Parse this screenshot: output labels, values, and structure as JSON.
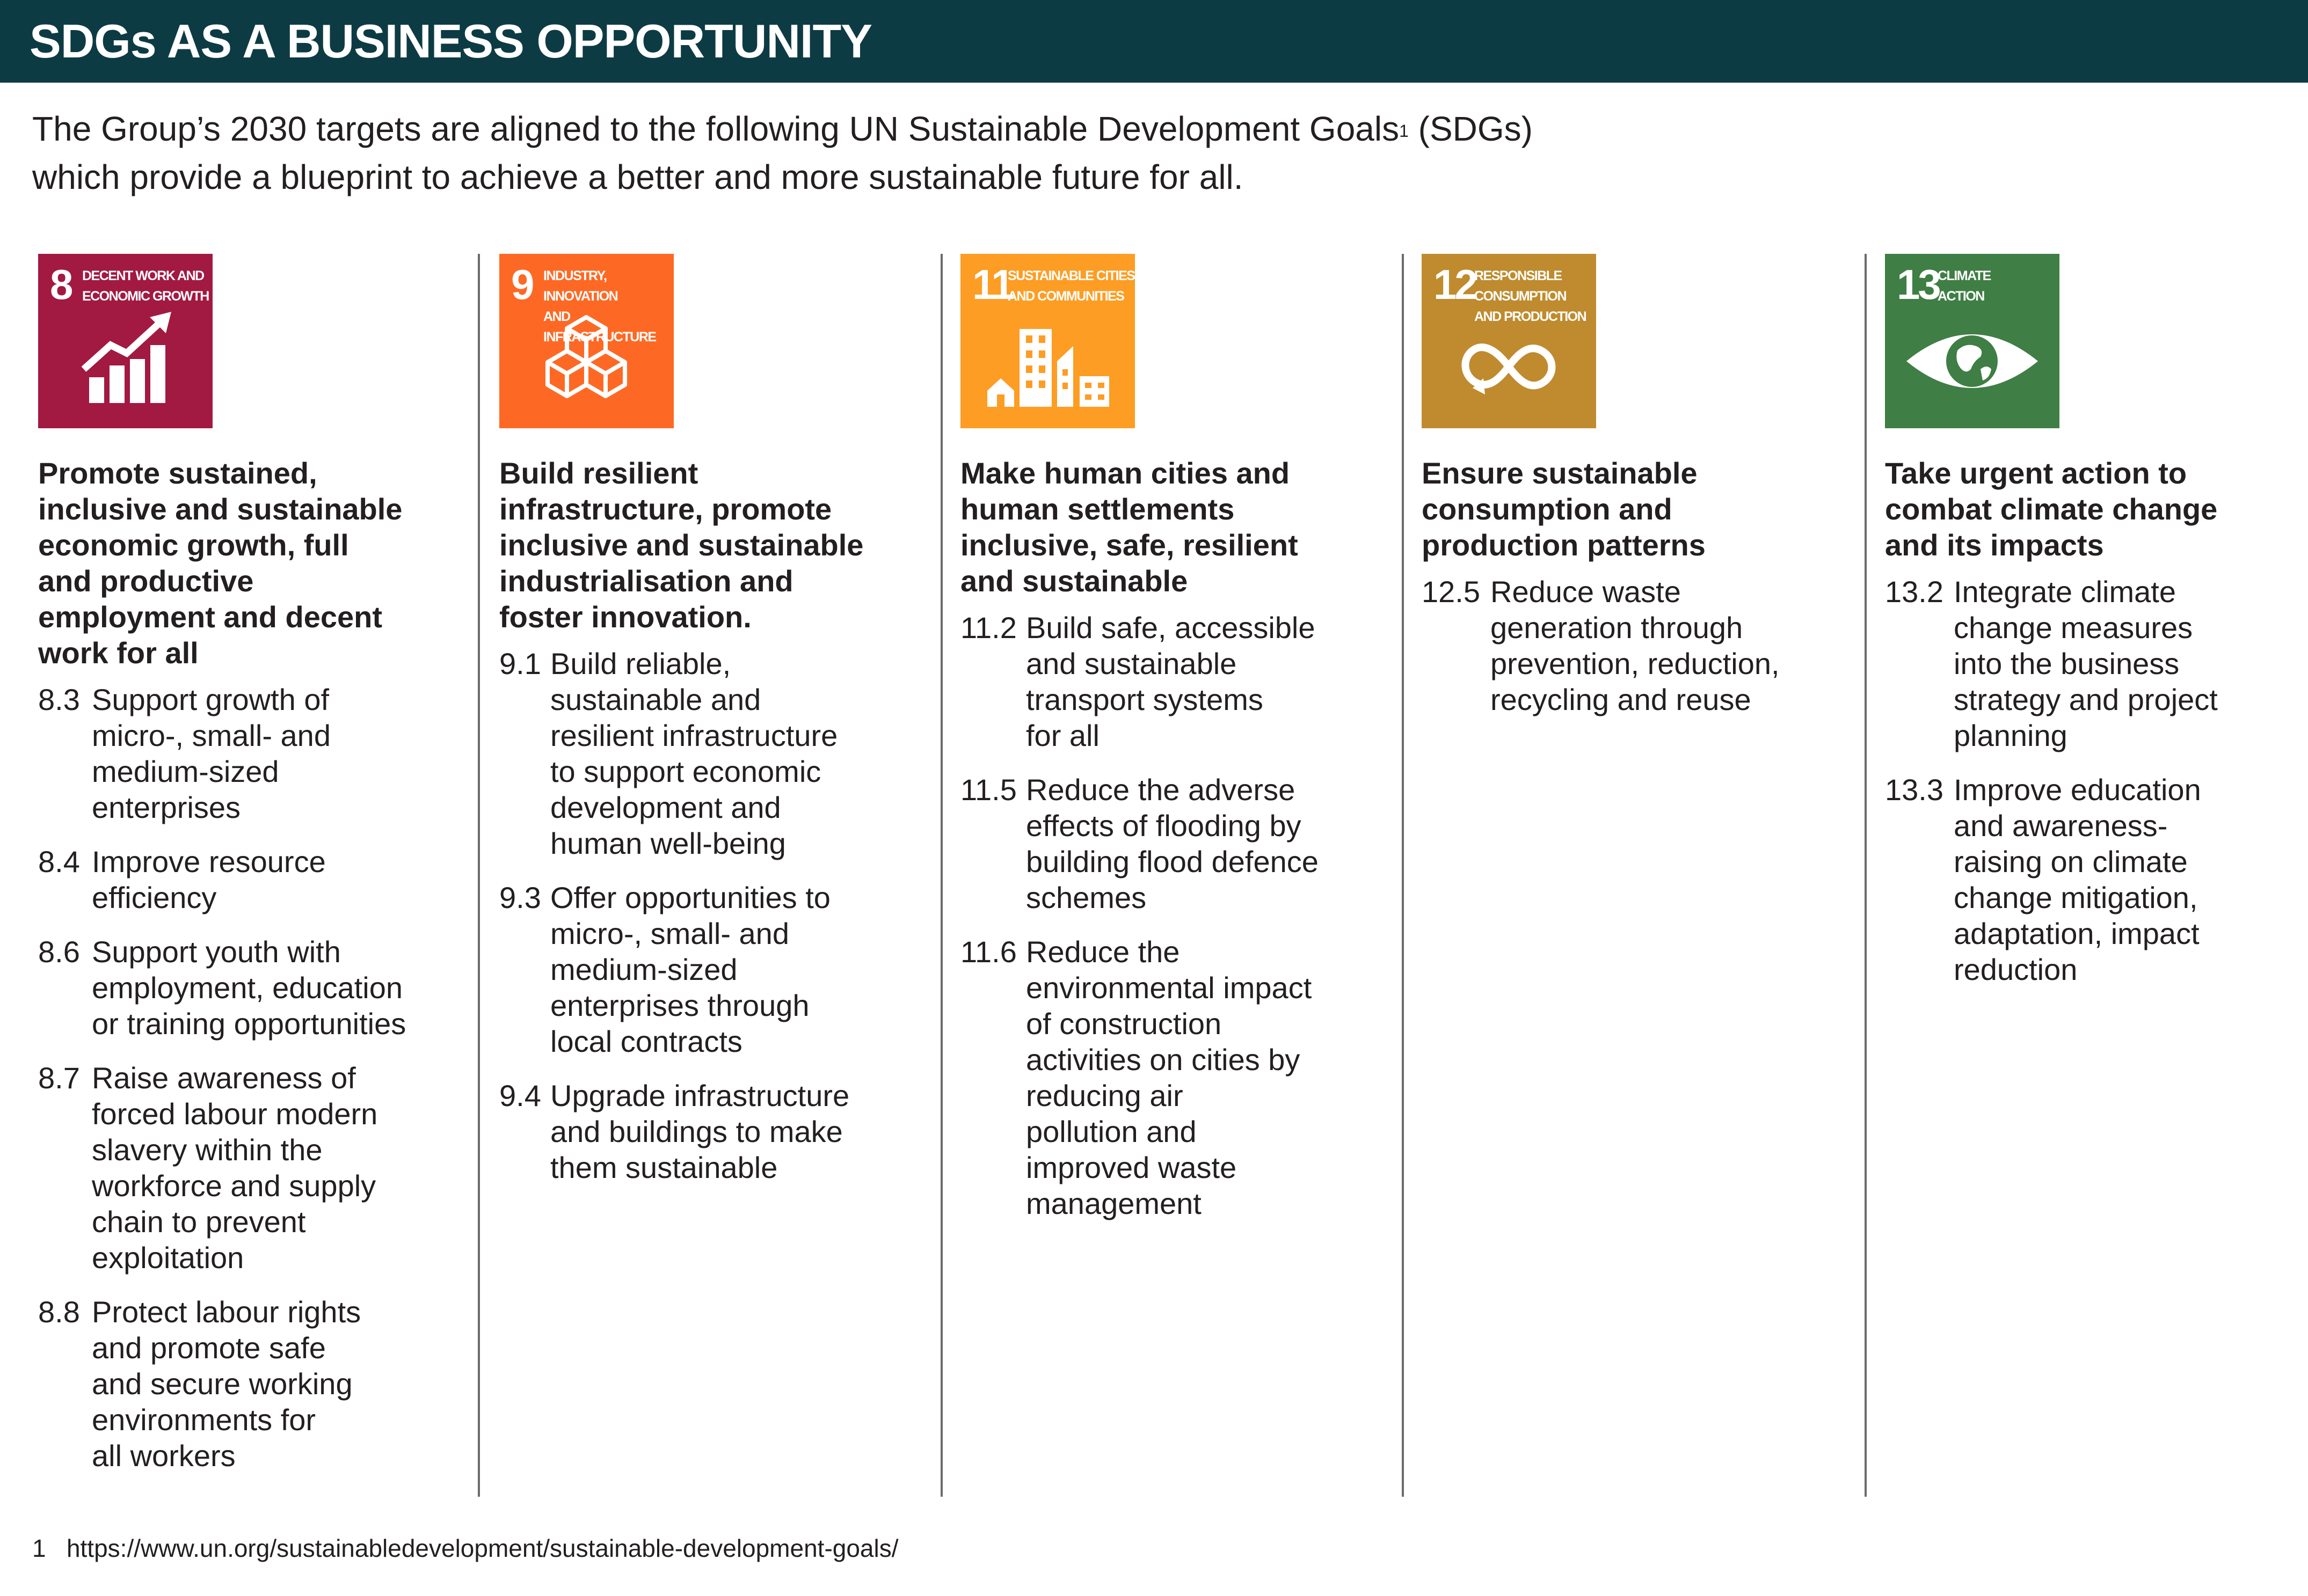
{
  "header": {
    "title": "SDGs AS A BUSINESS OPPORTUNITY"
  },
  "intro": {
    "line_1": "The Group’s 2030 targets are aligned to the following UN Sustainable Development Goals",
    "footnote_mark": "1",
    "line_1_end": " (SDGs)",
    "line_2": "which provide a blueprint to achieve a better and more sustainable future for all."
  },
  "goals": [
    {
      "number": "8",
      "tile_label": "DECENT WORK AND\nECONOMIC GROWTH",
      "tile_color": "#a21942",
      "icon": "growth-chart-icon",
      "heading": "Promote sustained,\ninclusive and sustainable\neconomic growth, full\nand productive\nemployment and decent\nwork for all",
      "targets": [
        {
          "num": "8.3",
          "text": "Support growth of\nmicro-, small- and\nmedium-sized\nenterprises"
        },
        {
          "num": "8.4",
          "text": "Improve resource\nefficiency"
        },
        {
          "num": "8.6",
          "text": "Support youth with\nemployment, education\nor training opportunities"
        },
        {
          "num": "8.7",
          "text": "Raise awareness of\nforced labour modern\nslavery within the\nworkforce and supply\nchain to prevent\nexploitation"
        },
        {
          "num": "8.8",
          "text": "Protect labour rights\nand promote safe\nand secure working\nenvironments for\nall workers"
        }
      ]
    },
    {
      "number": "9",
      "tile_label": "INDUSTRY, INNOVATION\nAND INFRASTRUCTURE",
      "tile_color": "#fd6925",
      "icon": "cubes-icon",
      "heading": "Build resilient\ninfrastructure, promote\ninclusive and sustainable\nindustrialisation and\nfoster innovation.",
      "targets": [
        {
          "num": "9.1",
          "text": "Build reliable,\nsustainable and\nresilient infrastructure\nto support economic\ndevelopment and\nhuman well-being"
        },
        {
          "num": "9.3",
          "text": "Offer opportunities to\nmicro-, small- and\nmedium-sized\nenterprises through\nlocal contracts"
        },
        {
          "num": "9.4",
          "text": "Upgrade infrastructure\nand buildings to make\nthem sustainable"
        }
      ]
    },
    {
      "number": "11",
      "tile_label": "SUSTAINABLE CITIES\nAND COMMUNITIES",
      "tile_color": "#fd9d24",
      "icon": "city-buildings-icon",
      "heading": "Make human cities and\nhuman settlements\ninclusive, safe, resilient\nand sustainable",
      "targets": [
        {
          "num": "11.2",
          "text": "Build safe, accessible\nand sustainable\ntransport systems\nfor all"
        },
        {
          "num": "11.5",
          "text": "Reduce the adverse\neffects of flooding by\nbuilding flood defence\nschemes"
        },
        {
          "num": "11.6",
          "text": "Reduce the\nenvironmental impact\nof construction\nactivities on cities by\nreducing air\npollution and\nimproved waste\nmanagement"
        }
      ]
    },
    {
      "number": "12",
      "tile_label": "RESPONSIBLE\nCONSUMPTION\nAND PRODUCTION",
      "tile_color": "#bf8b2e",
      "icon": "infinity-icon",
      "heading": "Ensure sustainable\nconsumption and\nproduction patterns",
      "targets": [
        {
          "num": "12.5",
          "text": "Reduce waste\ngeneration through\nprevention, reduction,\nrecycling and reuse"
        }
      ]
    },
    {
      "number": "13",
      "tile_label": "CLIMATE\nACTION",
      "tile_color": "#3f7e44",
      "icon": "earth-eye-icon",
      "heading": "Take urgent action to\ncombat climate change\nand its impacts",
      "targets": [
        {
          "num": "13.2",
          "text": "Integrate climate\nchange measures\ninto the business\nstrategy and project\nplanning"
        },
        {
          "num": "13.3",
          "text": "Improve education\nand awareness-\nraising on climate\nchange mitigation,\nadaptation, impact\nreduction"
        }
      ]
    }
  ],
  "footnote": {
    "mark": "1",
    "text": "https://www.un.org/sustainabledevelopment/sustainable-development-goals/"
  }
}
